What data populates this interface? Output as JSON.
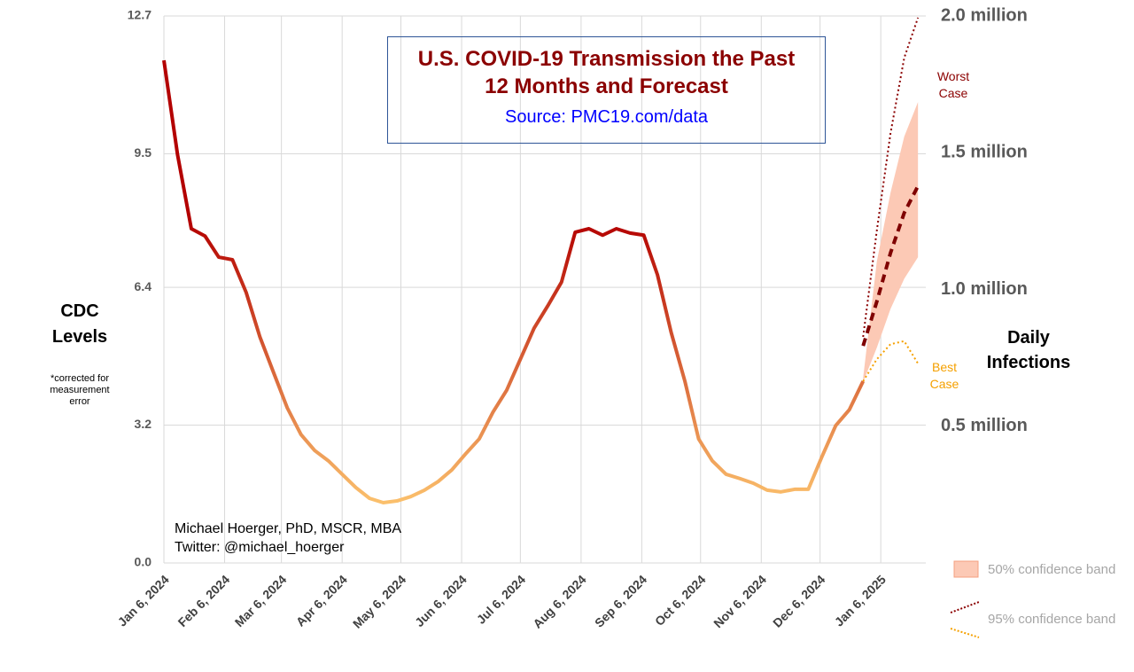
{
  "chart_data": {
    "type": "line",
    "title": "U.S. COVID-19 Transmission the Past 12 Months and Forecast",
    "subtitle": "Source: PMC19.com/data",
    "ylabel": "CDC Levels",
    "ylabel_note": "*corrected for measurement error",
    "y2label": "Daily Infections",
    "credit": [
      "Michael Hoerger, PhD, MSCR, MBA",
      "Twitter: @michael_hoerger"
    ],
    "grid": true,
    "xlim": [
      "2024-01-06",
      "2025-01-29"
    ],
    "xticks": [
      {
        "value": "2024-01-06",
        "label": "Jan 6, 2024"
      },
      {
        "value": "2024-02-06",
        "label": "Feb 6, 2024"
      },
      {
        "value": "2024-03-06",
        "label": "Mar 6, 2024"
      },
      {
        "value": "2024-04-06",
        "label": "Apr 6, 2024"
      },
      {
        "value": "2024-05-06",
        "label": "May 6, 2024"
      },
      {
        "value": "2024-06-06",
        "label": "Jun 6, 2024"
      },
      {
        "value": "2024-07-06",
        "label": "Jul 6, 2024"
      },
      {
        "value": "2024-08-06",
        "label": "Aug 6, 2024"
      },
      {
        "value": "2024-09-06",
        "label": "Sep 6, 2024"
      },
      {
        "value": "2024-10-06",
        "label": "Oct 6, 2024"
      },
      {
        "value": "2024-11-06",
        "label": "Nov 6, 2024"
      },
      {
        "value": "2024-12-06",
        "label": "Dec 6, 2024"
      },
      {
        "value": "2025-01-06",
        "label": "Jan 6, 2025"
      }
    ],
    "ylim": [
      0,
      12.7
    ],
    "yticks": [
      {
        "value": 0,
        "label": "0.0"
      },
      3.2,
      6.4,
      9.5,
      12.7
    ],
    "y2lim": [
      0,
      2000000
    ],
    "y2ticks": [
      {
        "value": 500000,
        "label": "0.5 million"
      },
      {
        "value": 1000000,
        "label": "1.0 million"
      },
      {
        "value": 1500000,
        "label": "1.5 million"
      },
      {
        "value": 2000000,
        "label": "2.0 million"
      }
    ],
    "series": [
      {
        "kind": "observed",
        "gradient": [
          "#b30000",
          "#fbc06c"
        ],
        "x": [
          "2024-01-06",
          "2024-01-13",
          "2024-01-20",
          "2024-01-27",
          "2024-02-03",
          "2024-02-10",
          "2024-02-17",
          "2024-02-24",
          "2024-03-02",
          "2024-03-09",
          "2024-03-16",
          "2024-03-23",
          "2024-03-30",
          "2024-04-06",
          "2024-04-13",
          "2024-04-20",
          "2024-04-27",
          "2024-05-04",
          "2024-05-11",
          "2024-05-18",
          "2024-05-25",
          "2024-06-01",
          "2024-06-08",
          "2024-06-15",
          "2024-06-22",
          "2024-06-29",
          "2024-07-06",
          "2024-07-13",
          "2024-07-20",
          "2024-07-27",
          "2024-08-03",
          "2024-08-10",
          "2024-08-17",
          "2024-08-24",
          "2024-08-31",
          "2024-09-07",
          "2024-09-14",
          "2024-09-21",
          "2024-09-28",
          "2024-10-05",
          "2024-10-12",
          "2024-10-19",
          "2024-10-26",
          "2024-11-02",
          "2024-11-09",
          "2024-11-16",
          "2024-11-23",
          "2024-11-30",
          "2024-12-07",
          "2024-12-14",
          "2024-12-21",
          "2024-12-28"
        ],
        "values": [
          11.67,
          9.47,
          7.76,
          7.59,
          7.1,
          7.04,
          6.28,
          5.25,
          4.42,
          3.6,
          2.98,
          2.61,
          2.37,
          2.06,
          1.75,
          1.5,
          1.4,
          1.44,
          1.54,
          1.69,
          1.89,
          2.16,
          2.53,
          2.88,
          3.5,
          4.01,
          4.73,
          5.45,
          5.97,
          6.52,
          7.68,
          7.76,
          7.61,
          7.76,
          7.66,
          7.61,
          6.69,
          5.35,
          4.22,
          2.88,
          2.37,
          2.06,
          1.96,
          1.85,
          1.69,
          1.65,
          1.71,
          1.71,
          2.47,
          3.19,
          3.56,
          4.22
        ]
      },
      {
        "kind": "median",
        "color": "#7f0000",
        "dash": "9 6",
        "x": [
          "2024-12-28",
          "2025-01-04",
          "2025-01-11",
          "2025-01-18",
          "2025-01-25"
        ],
        "values": [
          5.04,
          6.07,
          7.2,
          8.13,
          8.75
        ]
      },
      {
        "kind": "worst",
        "label": "Worst Case",
        "color": "#8b0000",
        "dash": "2 3",
        "x": [
          "2024-12-28",
          "2025-01-04",
          "2025-01-11",
          "2025-01-18",
          "2025-01-25"
        ],
        "values": [
          5.25,
          7.72,
          9.98,
          11.73,
          12.66
        ]
      },
      {
        "kind": "best",
        "label": "Best Case",
        "color": "#f5a000",
        "dash": "2 3",
        "x": [
          "2024-12-28",
          "2025-01-04",
          "2025-01-11",
          "2025-01-18",
          "2025-01-25"
        ],
        "values": [
          4.22,
          4.73,
          5.08,
          5.15,
          4.63
        ]
      }
    ],
    "band": {
      "name": "50% confidence band",
      "color": "#fcc9b5",
      "edge": "#f4a080",
      "x": [
        "2024-12-28",
        "2025-01-04",
        "2025-01-11",
        "2025-01-18",
        "2025-01-25"
      ],
      "lower": [
        4.2,
        5.0,
        5.9,
        6.6,
        7.1
      ],
      "upper": [
        4.3,
        7.0,
        8.6,
        9.9,
        10.7
      ]
    },
    "legend_95": "95% confidence band"
  }
}
